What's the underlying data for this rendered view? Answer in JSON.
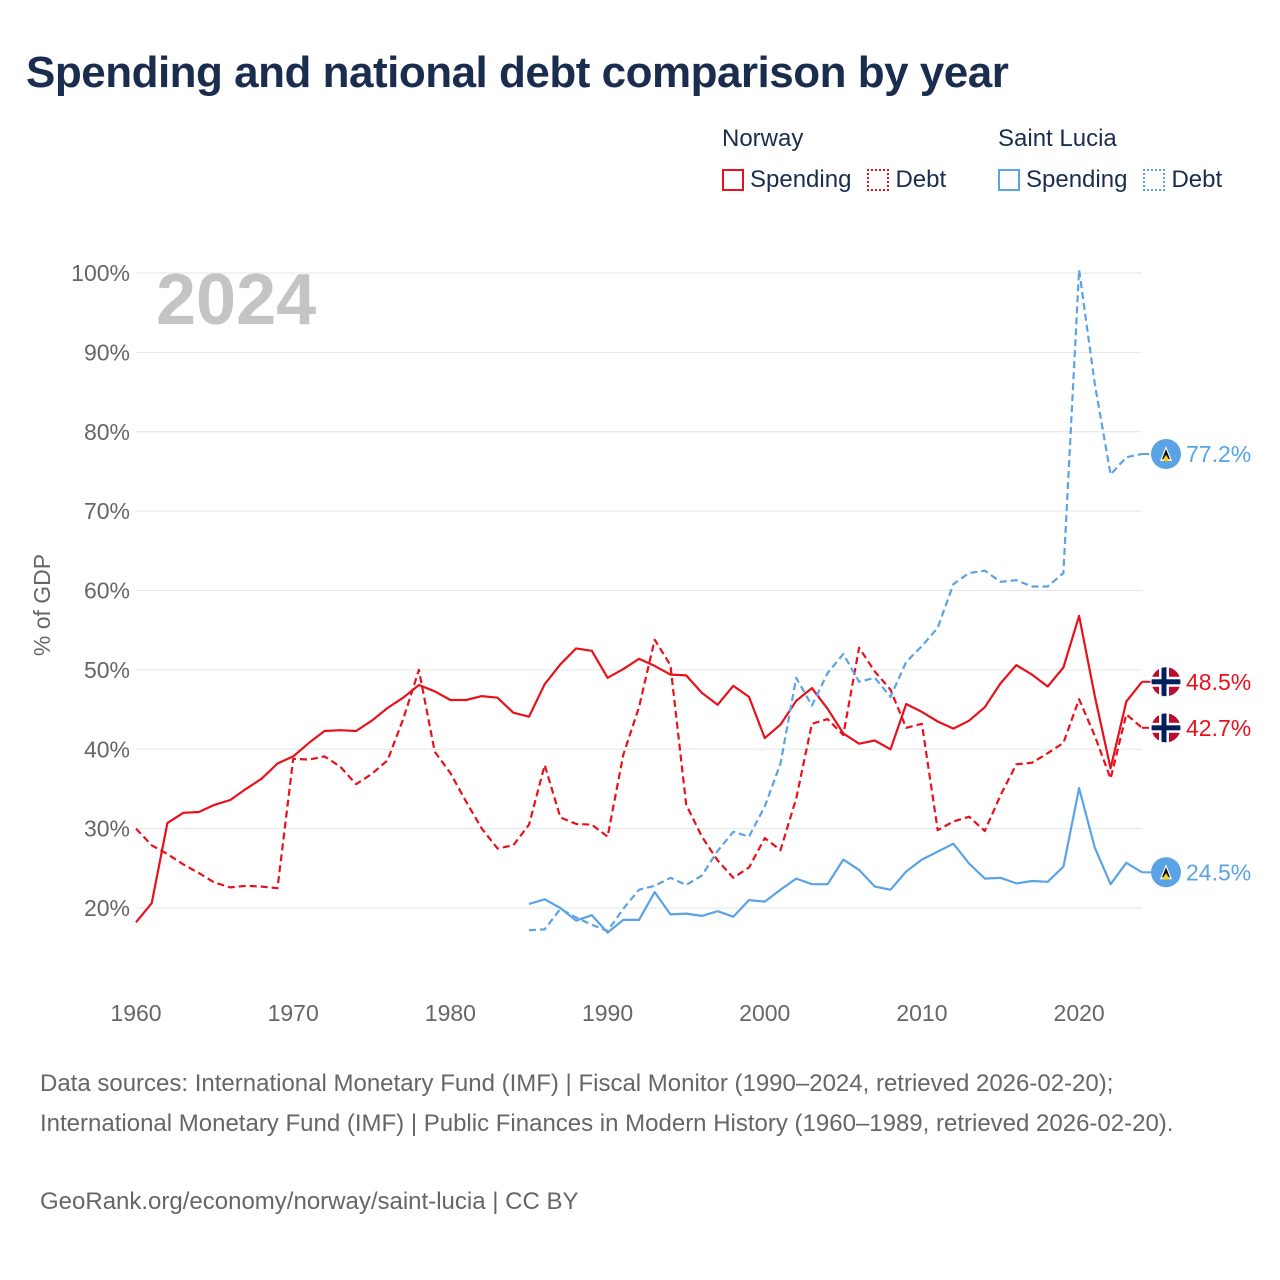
{
  "title": "Spending and national debt comparison by year",
  "legend": {
    "groups": [
      {
        "name": "Norway",
        "items": [
          {
            "label": "Spending",
            "color": "#e8111b",
            "style": "solid"
          },
          {
            "label": "Debt",
            "color": "#e8111b",
            "style": "dotted"
          }
        ]
      },
      {
        "name": "Saint Lucia",
        "items": [
          {
            "label": "Spending",
            "color": "#5aa3e6",
            "style": "solid"
          },
          {
            "label": "Debt",
            "color": "#5aa3e6",
            "style": "dotted"
          }
        ]
      }
    ]
  },
  "chart_data": {
    "type": "line",
    "year_label": "2024",
    "ylabel": "% of GDP",
    "xlim": [
      1960,
      2024
    ],
    "ylim": [
      13,
      100
    ],
    "xticks": [
      1960,
      1970,
      1980,
      1990,
      2000,
      2010,
      2020
    ],
    "yticks": [
      20,
      30,
      40,
      50,
      60,
      70,
      80,
      90,
      100
    ],
    "ytick_suffix": "%",
    "series": [
      {
        "name": "Norway Spending",
        "country": "Norway",
        "metric": "Spending",
        "color": "#e8111b",
        "dash": "solid",
        "end_label": "48.5%",
        "points": [
          [
            1960,
            18.2
          ],
          [
            1961,
            20.6
          ],
          [
            1962,
            30.7
          ],
          [
            1963,
            32
          ],
          [
            1964,
            32.1
          ],
          [
            1965,
            33
          ],
          [
            1966,
            33.6
          ],
          [
            1967,
            35
          ],
          [
            1968,
            36.3
          ],
          [
            1969,
            38.2
          ],
          [
            1970,
            39.1
          ],
          [
            1971,
            40.8
          ],
          [
            1972,
            42.3
          ],
          [
            1973,
            42.4
          ],
          [
            1974,
            42.3
          ],
          [
            1975,
            43.6
          ],
          [
            1976,
            45.2
          ],
          [
            1977,
            46.5
          ],
          [
            1978,
            48.1
          ],
          [
            1979,
            47.3
          ],
          [
            1980,
            46.2
          ],
          [
            1981,
            46.2
          ],
          [
            1982,
            46.7
          ],
          [
            1983,
            46.5
          ],
          [
            1984,
            44.6
          ],
          [
            1985,
            44.1
          ],
          [
            1986,
            48.2
          ],
          [
            1987,
            50.7
          ],
          [
            1988,
            52.7
          ],
          [
            1989,
            52.4
          ],
          [
            1990,
            49
          ],
          [
            1991,
            50.1
          ],
          [
            1992,
            51.4
          ],
          [
            1993,
            50.5
          ],
          [
            1994,
            49.4
          ],
          [
            1995,
            49.3
          ],
          [
            1996,
            47.1
          ],
          [
            1997,
            45.6
          ],
          [
            1998,
            48
          ],
          [
            1999,
            46.6
          ],
          [
            2000,
            41.4
          ],
          [
            2001,
            43.1
          ],
          [
            2002,
            46.1
          ],
          [
            2003,
            47.7
          ],
          [
            2004,
            45.1
          ],
          [
            2005,
            42
          ],
          [
            2006,
            40.7
          ],
          [
            2007,
            41.1
          ],
          [
            2008,
            40
          ],
          [
            2009,
            45.7
          ],
          [
            2010,
            44.7
          ],
          [
            2011,
            43.5
          ],
          [
            2012,
            42.6
          ],
          [
            2013,
            43.6
          ],
          [
            2014,
            45.3
          ],
          [
            2015,
            48.3
          ],
          [
            2016,
            50.6
          ],
          [
            2017,
            49.4
          ],
          [
            2018,
            47.9
          ],
          [
            2019,
            50.3
          ],
          [
            2020,
            56.8
          ],
          [
            2021,
            46.7
          ],
          [
            2022,
            37.6
          ],
          [
            2023,
            46
          ],
          [
            2024,
            48.5
          ]
        ]
      },
      {
        "name": "Norway Debt",
        "country": "Norway",
        "metric": "Debt",
        "color": "#e8111b",
        "dash": "dashed",
        "end_label": "42.7%",
        "points": [
          [
            1960,
            30
          ],
          [
            1961,
            27.9
          ],
          [
            1962,
            26.8
          ],
          [
            1963,
            25.5
          ],
          [
            1964,
            24.4
          ],
          [
            1965,
            23.2
          ],
          [
            1966,
            22.6
          ],
          [
            1967,
            22.8
          ],
          [
            1968,
            22.7
          ],
          [
            1969,
            22.5
          ],
          [
            1970,
            38.8
          ],
          [
            1971,
            38.7
          ],
          [
            1972,
            39.1
          ],
          [
            1973,
            37.8
          ],
          [
            1974,
            35.6
          ],
          [
            1975,
            36.9
          ],
          [
            1976,
            38.6
          ],
          [
            1977,
            43.8
          ],
          [
            1978,
            50
          ],
          [
            1979,
            39.7
          ],
          [
            1980,
            37
          ],
          [
            1981,
            33.4
          ],
          [
            1982,
            30
          ],
          [
            1983,
            27.5
          ],
          [
            1984,
            27.9
          ],
          [
            1985,
            30.5
          ],
          [
            1986,
            38
          ],
          [
            1987,
            31.4
          ],
          [
            1988,
            30.6
          ],
          [
            1989,
            30.5
          ],
          [
            1990,
            29
          ],
          [
            1991,
            39.3
          ],
          [
            1992,
            45.3
          ],
          [
            1993,
            53.8
          ],
          [
            1994,
            50.6
          ],
          [
            1995,
            33
          ],
          [
            1996,
            29
          ],
          [
            1997,
            26
          ],
          [
            1998,
            23.8
          ],
          [
            1999,
            25.1
          ],
          [
            2000,
            28.8
          ],
          [
            2001,
            27.3
          ],
          [
            2002,
            33.8
          ],
          [
            2003,
            43.2
          ],
          [
            2004,
            43.8
          ],
          [
            2005,
            41.8
          ],
          [
            2006,
            52.8
          ],
          [
            2007,
            49.8
          ],
          [
            2008,
            47.5
          ],
          [
            2009,
            42.7
          ],
          [
            2010,
            43.2
          ],
          [
            2011,
            29.8
          ],
          [
            2012,
            30.9
          ],
          [
            2013,
            31.5
          ],
          [
            2014,
            29.7
          ],
          [
            2015,
            34.2
          ],
          [
            2016,
            38.1
          ],
          [
            2017,
            38.3
          ],
          [
            2018,
            39.5
          ],
          [
            2019,
            40.8
          ],
          [
            2020,
            46.3
          ],
          [
            2021,
            41.7
          ],
          [
            2022,
            36.3
          ],
          [
            2023,
            44.4
          ],
          [
            2024,
            42.7
          ]
        ]
      },
      {
        "name": "Saint Lucia Spending",
        "country": "Saint Lucia",
        "metric": "Spending",
        "color": "#5aa3e6",
        "dash": "solid",
        "end_label": "24.5%",
        "points": [
          [
            1985,
            20.5
          ],
          [
            1986,
            21.1
          ],
          [
            1987,
            20
          ],
          [
            1988,
            18.4
          ],
          [
            1989,
            19.1
          ],
          [
            1990,
            16.9
          ],
          [
            1991,
            18.5
          ],
          [
            1992,
            18.5
          ],
          [
            1993,
            22
          ],
          [
            1994,
            19.2
          ],
          [
            1995,
            19.3
          ],
          [
            1996,
            19
          ],
          [
            1997,
            19.6
          ],
          [
            1998,
            18.9
          ],
          [
            1999,
            21
          ],
          [
            2000,
            20.8
          ],
          [
            2001,
            22.3
          ],
          [
            2002,
            23.7
          ],
          [
            2003,
            23
          ],
          [
            2004,
            23
          ],
          [
            2005,
            26.1
          ],
          [
            2006,
            24.8
          ],
          [
            2007,
            22.7
          ],
          [
            2008,
            22.3
          ],
          [
            2009,
            24.6
          ],
          [
            2010,
            26.1
          ],
          [
            2011,
            27.1
          ],
          [
            2012,
            28.1
          ],
          [
            2013,
            25.6
          ],
          [
            2014,
            23.7
          ],
          [
            2015,
            23.8
          ],
          [
            2016,
            23.1
          ],
          [
            2017,
            23.4
          ],
          [
            2018,
            23.3
          ],
          [
            2019,
            25.2
          ],
          [
            2020,
            35.1
          ],
          [
            2021,
            27.6
          ],
          [
            2022,
            23
          ],
          [
            2023,
            25.7
          ],
          [
            2024,
            24.5
          ]
        ]
      },
      {
        "name": "Saint Lucia Debt",
        "country": "Saint Lucia",
        "metric": "Debt",
        "color": "#5aa3e6",
        "dash": "dashed",
        "end_label": "77.2%",
        "points": [
          [
            1985,
            17.2
          ],
          [
            1986,
            17.3
          ],
          [
            1987,
            19.9
          ],
          [
            1988,
            18.8
          ],
          [
            1989,
            17.9
          ],
          [
            1990,
            17.1
          ],
          [
            1991,
            19.9
          ],
          [
            1992,
            22.3
          ],
          [
            1993,
            22.8
          ],
          [
            1994,
            23.8
          ],
          [
            1995,
            22.9
          ],
          [
            1996,
            24.1
          ],
          [
            1997,
            27.2
          ],
          [
            1998,
            29.6
          ],
          [
            1999,
            29
          ],
          [
            2000,
            32.8
          ],
          [
            2001,
            38.2
          ],
          [
            2002,
            49
          ],
          [
            2003,
            45.5
          ],
          [
            2004,
            49.6
          ],
          [
            2005,
            52
          ],
          [
            2006,
            48.5
          ],
          [
            2007,
            49
          ],
          [
            2008,
            46.6
          ],
          [
            2009,
            51
          ],
          [
            2010,
            53
          ],
          [
            2011,
            55.3
          ],
          [
            2012,
            60.8
          ],
          [
            2013,
            62.2
          ],
          [
            2014,
            62.5
          ],
          [
            2015,
            61.1
          ],
          [
            2016,
            61.3
          ],
          [
            2017,
            60.5
          ],
          [
            2018,
            60.5
          ],
          [
            2019,
            62.2
          ],
          [
            2020,
            100.4
          ],
          [
            2021,
            86
          ],
          [
            2022,
            74.6
          ],
          [
            2023,
            76.8
          ],
          [
            2024,
            77.2
          ]
        ]
      }
    ]
  },
  "footer": {
    "source": "Data sources: International Monetary Fund (IMF) | Fiscal Monitor (1990–2024, retrieved 2026-02-20); International Monetary Fund (IMF) | Public Finances in Modern History (1960–1989, retrieved 2026-02-20).",
    "credit": "GeoRank.org/economy/norway/saint-lucia | CC BY"
  }
}
